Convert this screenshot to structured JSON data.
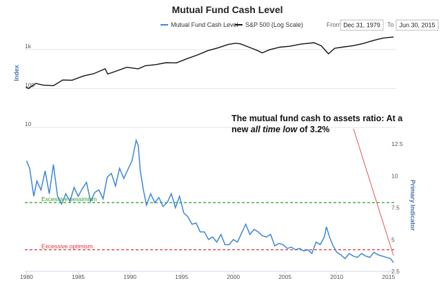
{
  "chart_data": {
    "type": "line",
    "title": "Mutual Fund Cash Level",
    "date_range": {
      "from_label": "From",
      "from": "Dec 31, 1979",
      "to_label": "To",
      "to": "Jun 30, 2015"
    },
    "legend": [
      {
        "name": "Mutual Fund Cash Level",
        "color": "#3a87d6"
      },
      {
        "name": "S&P 500 (Log Scale)",
        "color": "#111111"
      }
    ],
    "x_ticks": [
      "1980",
      "1985",
      "1990",
      "1995",
      "2000",
      "2005",
      "2010",
      "2015"
    ],
    "upper_panel": {
      "ylabel": "Index",
      "scale": "log",
      "ylim": [
        10,
        3000
      ],
      "y_ticks": [
        "10",
        "100",
        "1k"
      ],
      "series": {
        "name": "S&P 500 (Log Scale)",
        "x": [
          1979.95,
          1980.2,
          1980.9,
          1981.6,
          1982.6,
          1983.5,
          1984.4,
          1985.5,
          1986.5,
          1987.6,
          1987.85,
          1988.5,
          1989.7,
          1990.8,
          1991.5,
          1992.5,
          1993.5,
          1994.5,
          1995.5,
          1996.5,
          1997.5,
          1998.5,
          1999.5,
          2000.2,
          2000.7,
          2001.7,
          2002.3,
          2002.8,
          2003.5,
          2004.5,
          2005.5,
          2006.5,
          2007.8,
          2008.5,
          2009.2,
          2009.8,
          2010.5,
          2011.5,
          2012.5,
          2013.5,
          2014.5,
          2015.5
        ],
        "values": [
          108,
          100,
          135,
          122,
          118,
          165,
          163,
          210,
          240,
          320,
          235,
          270,
          350,
          320,
          385,
          410,
          460,
          455,
          580,
          720,
          930,
          1100,
          1350,
          1450,
          1400,
          1100,
          950,
          820,
          990,
          1150,
          1220,
          1380,
          1500,
          1250,
          780,
          1080,
          1150,
          1250,
          1420,
          1700,
          1980,
          2100
        ]
      }
    },
    "lower_panel": {
      "ylabel": "Primary Indicator",
      "ylim": [
        2.5,
        13
      ],
      "y_ticks": [
        2.5,
        5,
        7.5,
        10,
        12.5
      ],
      "thresholds": [
        {
          "label": "Excessive pessimism",
          "value": 7.9,
          "color": "#2b9a2b"
        },
        {
          "label": "Excessive optimism",
          "value": 4.2,
          "color": "#e0303a"
        }
      ],
      "series": {
        "name": "Mutual Fund Cash Level",
        "x": [
          1980.0,
          1980.3,
          1980.7,
          1981.0,
          1981.4,
          1981.8,
          1982.2,
          1982.6,
          1983.0,
          1983.4,
          1983.8,
          1984.2,
          1984.6,
          1985.0,
          1985.4,
          1985.8,
          1986.2,
          1986.6,
          1987.0,
          1987.4,
          1987.8,
          1988.2,
          1988.6,
          1989.0,
          1989.4,
          1989.8,
          1990.2,
          1990.6,
          1990.8,
          1991.0,
          1991.3,
          1991.6,
          1992.0,
          1992.4,
          1992.8,
          1993.2,
          1993.6,
          1994.0,
          1994.4,
          1994.8,
          1995.2,
          1995.6,
          1996.0,
          1996.4,
          1996.8,
          1997.2,
          1997.6,
          1998.0,
          1998.4,
          1998.8,
          1999.2,
          1999.6,
          2000.0,
          2000.4,
          2000.8,
          2001.2,
          2001.6,
          2002.0,
          2002.4,
          2002.8,
          2003.2,
          2003.6,
          2004.0,
          2004.4,
          2004.8,
          2005.2,
          2005.6,
          2006.0,
          2006.4,
          2006.8,
          2007.2,
          2007.6,
          2008.0,
          2008.4,
          2008.8,
          2009.0,
          2009.3,
          2009.6,
          2010.0,
          2010.4,
          2010.8,
          2011.2,
          2011.6,
          2012.0,
          2012.4,
          2012.8,
          2013.2,
          2013.6,
          2014.0,
          2014.4,
          2014.8,
          2015.2,
          2015.5
        ],
        "values": [
          11.2,
          10.6,
          8.4,
          9.6,
          8.9,
          10.4,
          8.6,
          10.9,
          8.4,
          7.8,
          8.6,
          8.0,
          9.1,
          8.4,
          9.0,
          9.5,
          8.0,
          8.7,
          8.9,
          8.2,
          9.9,
          10.2,
          9.2,
          10.6,
          9.8,
          10.5,
          11.2,
          12.8,
          12.4,
          10.4,
          8.9,
          7.7,
          8.6,
          7.9,
          8.3,
          7.6,
          7.9,
          8.6,
          7.5,
          8.4,
          7.1,
          6.8,
          6.2,
          6.3,
          5.6,
          5.6,
          5.0,
          5.2,
          4.8,
          5.4,
          4.6,
          4.6,
          5.0,
          4.8,
          5.5,
          6.2,
          5.4,
          5.8,
          5.6,
          5.3,
          5.2,
          5.4,
          4.5,
          4.7,
          4.6,
          4.3,
          4.4,
          4.2,
          4.3,
          4.1,
          4.2,
          3.9,
          4.8,
          4.6,
          5.2,
          6.0,
          5.2,
          4.6,
          4.0,
          3.8,
          3.5,
          3.9,
          3.7,
          3.6,
          3.9,
          3.7,
          3.6,
          4.0,
          3.8,
          3.7,
          3.6,
          3.5,
          3.2
        ]
      }
    },
    "annotation": {
      "line1": "The mutual fund cash to assets ratio: At a",
      "line2_prefix": "new ",
      "line2_emphasis": "all time low",
      "line2_suffix": " of 3.2%"
    }
  }
}
